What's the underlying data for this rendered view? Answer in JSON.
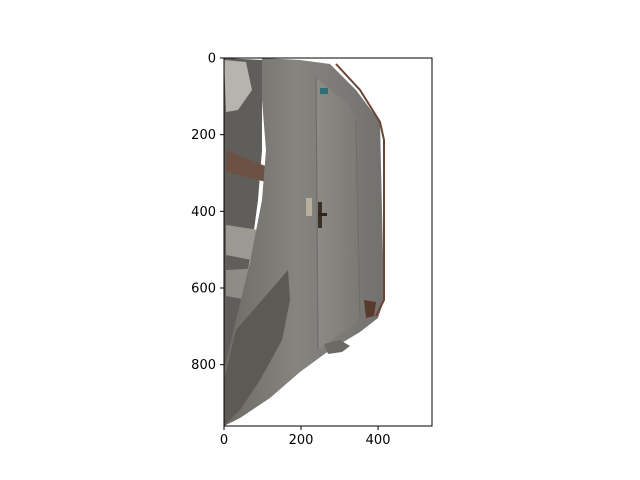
{
  "chart_data": {
    "type": "image",
    "title": "",
    "xlabel": "",
    "ylabel": "",
    "xlim": [
      0,
      540
    ],
    "ylim": [
      960,
      0
    ],
    "y_axis_inverted": true,
    "xticks": [
      0,
      200,
      400
    ],
    "yticks": [
      0,
      200,
      400,
      600,
      800
    ],
    "grid": false,
    "legend": "none",
    "image_content": "rendered point-cloud of a hallway wall with a door",
    "colors": {
      "background": "#ffffff",
      "wall": "#7d7b76",
      "wall_dark": "#5b5a55",
      "door": "#8a8882",
      "trim": "#5a3a2a",
      "axis": "#000000"
    }
  }
}
